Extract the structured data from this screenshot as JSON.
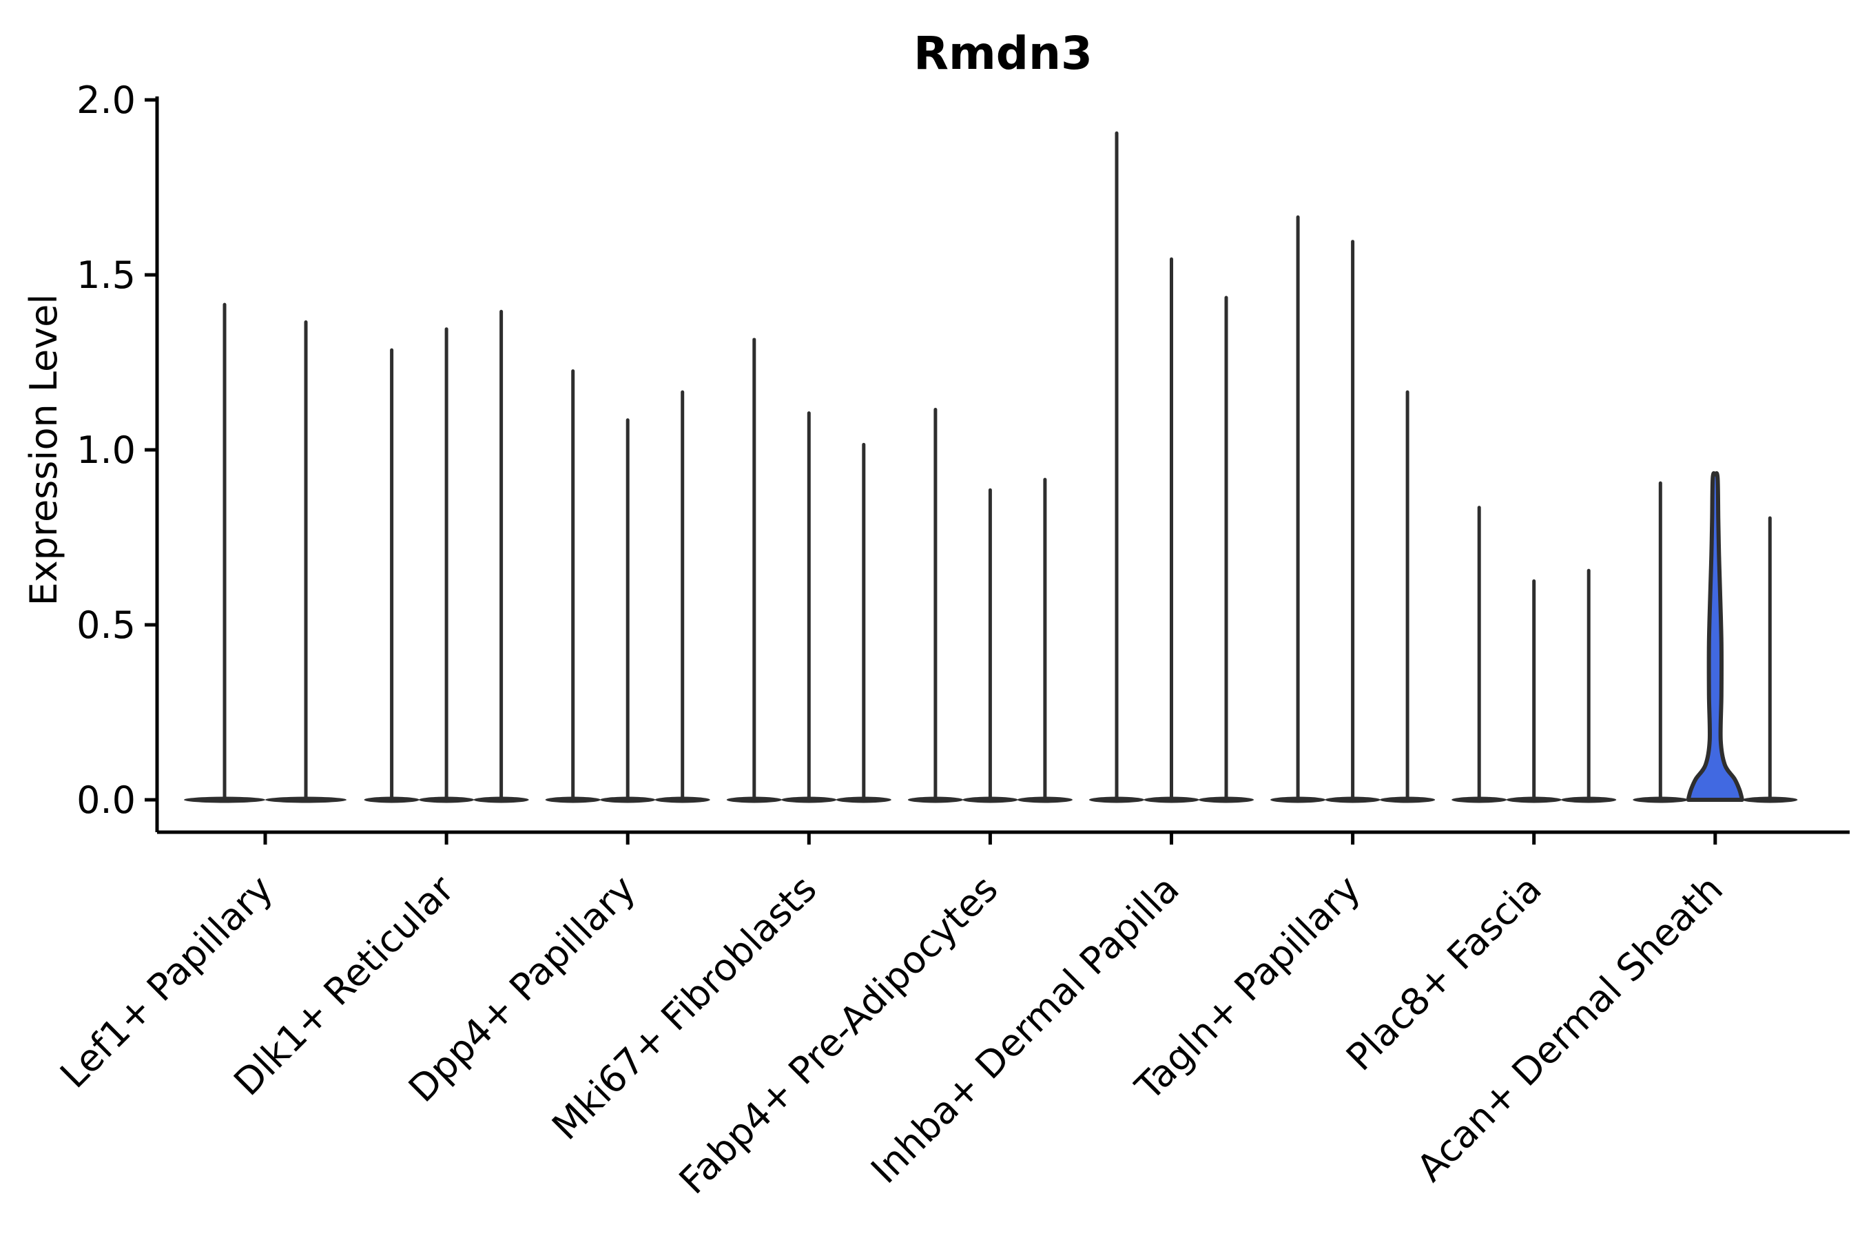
{
  "chart_data": {
    "type": "violin",
    "title": "Rmdn3",
    "xlabel": "",
    "ylabel": "Expression Level",
    "ylim": [
      0.0,
      2.0
    ],
    "ytick_labels": [
      "0.0",
      "0.5",
      "1.0",
      "1.5",
      "2.0"
    ],
    "grid": false,
    "legend": "none",
    "categories": [
      "Lef1+ Papillary",
      "Dlk1+ Reticular",
      "Dpp4+ Papillary",
      "Mki67+ Fibroblasts",
      "Fabp4+ Pre-Adipocytes",
      "Inhba+ Dermal Papilla",
      "Tagln+ Papillary",
      "Plac8+ Fascia",
      "Acan+ Dermal Sheath"
    ],
    "groups": [
      {
        "category": "Lef1+ Papillary",
        "violins": [
          {
            "max": 1.42
          },
          {
            "max": 1.37
          }
        ]
      },
      {
        "category": "Dlk1+ Reticular",
        "violins": [
          {
            "max": 1.29
          },
          {
            "max": 1.35
          },
          {
            "max": 1.4
          }
        ]
      },
      {
        "category": "Dpp4+ Papillary",
        "violins": [
          {
            "max": 1.23
          },
          {
            "max": 1.09
          },
          {
            "max": 1.17
          }
        ]
      },
      {
        "category": "Mki67+ Fibroblasts",
        "violins": [
          {
            "max": 1.32
          },
          {
            "max": 1.11
          },
          {
            "max": 1.02
          }
        ]
      },
      {
        "category": "Fabp4+ Pre-Adipocytes",
        "violins": [
          {
            "max": 1.12
          },
          {
            "max": 0.89
          },
          {
            "max": 0.92
          }
        ]
      },
      {
        "category": "Inhba+ Dermal Papilla",
        "violins": [
          {
            "max": 1.91
          },
          {
            "max": 1.55
          },
          {
            "max": 1.44
          }
        ]
      },
      {
        "category": "Tagln+ Papillary",
        "violins": [
          {
            "max": 1.67
          },
          {
            "max": 1.6
          },
          {
            "max": 1.17
          }
        ]
      },
      {
        "category": "Plac8+ Fascia",
        "violins": [
          {
            "max": 0.84
          },
          {
            "max": 0.63
          },
          {
            "max": 0.66
          }
        ]
      },
      {
        "category": "Acan+ Dermal Sheath",
        "violins": [
          {
            "max": 0.91
          },
          {
            "max": 0.92,
            "highlighted": true
          },
          {
            "max": 0.81
          }
        ]
      }
    ],
    "highlight_profile": [
      [
        0.0,
        39
      ],
      [
        0.01,
        38
      ],
      [
        0.03,
        35
      ],
      [
        0.06,
        28
      ],
      [
        0.1,
        14
      ],
      [
        0.17,
        8
      ],
      [
        0.3,
        9
      ],
      [
        0.45,
        9
      ],
      [
        0.6,
        7
      ],
      [
        0.7,
        5.5
      ],
      [
        0.8,
        4.5
      ],
      [
        0.92,
        3.5
      ]
    ],
    "colors": {
      "violin_outline": "#2e2e2e",
      "highlight_fill": "#4169e1",
      "axis": "#000000",
      "text": "#000000",
      "background": "#ffffff"
    }
  }
}
